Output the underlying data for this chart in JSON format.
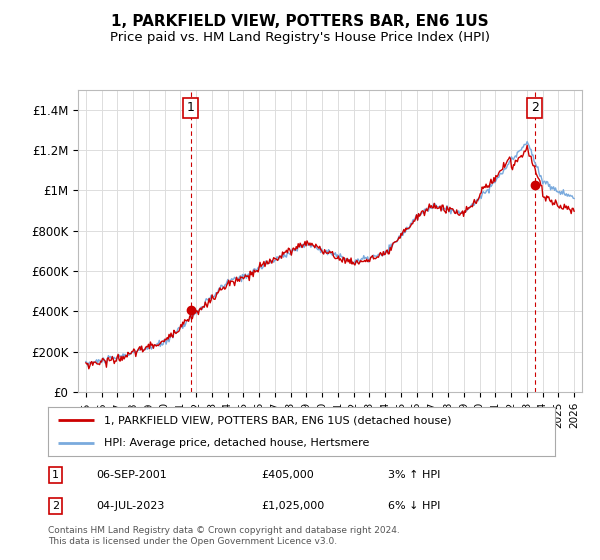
{
  "title": "1, PARKFIELD VIEW, POTTERS BAR, EN6 1US",
  "subtitle": "Price paid vs. HM Land Registry's House Price Index (HPI)",
  "ylim": [
    0,
    1500000
  ],
  "yticks": [
    0,
    200000,
    400000,
    600000,
    800000,
    1000000,
    1200000,
    1400000
  ],
  "ytick_labels": [
    "£0",
    "£200K",
    "£400K",
    "£600K",
    "£800K",
    "£1M",
    "£1.2M",
    "£1.4M"
  ],
  "xticks": [
    1995,
    1996,
    1997,
    1998,
    1999,
    2000,
    2001,
    2002,
    2003,
    2004,
    2005,
    2006,
    2007,
    2008,
    2009,
    2010,
    2011,
    2012,
    2013,
    2014,
    2015,
    2016,
    2017,
    2018,
    2019,
    2020,
    2021,
    2022,
    2023,
    2024,
    2025,
    2026
  ],
  "sale1_x": 2001.67,
  "sale1_y": 405000,
  "sale1_label": "1",
  "sale2_x": 2023.5,
  "sale2_y": 1025000,
  "sale2_label": "2",
  "line_color_red": "#cc0000",
  "line_color_blue": "#7aaadd",
  "dashed_color": "#cc0000",
  "marker_color": "#cc0000",
  "bg_color": "#ffffff",
  "grid_color": "#dddddd",
  "legend_line1": "1, PARKFIELD VIEW, POTTERS BAR, EN6 1US (detached house)",
  "legend_line2": "HPI: Average price, detached house, Hertsmere",
  "table_row1": [
    "1",
    "06-SEP-2001",
    "£405,000",
    "3% ↑ HPI"
  ],
  "table_row2": [
    "2",
    "04-JUL-2023",
    "£1,025,000",
    "6% ↓ HPI"
  ],
  "footer": "Contains HM Land Registry data © Crown copyright and database right 2024.\nThis data is licensed under the Open Government Licence v3.0.",
  "title_fontsize": 11,
  "subtitle_fontsize": 9.5
}
